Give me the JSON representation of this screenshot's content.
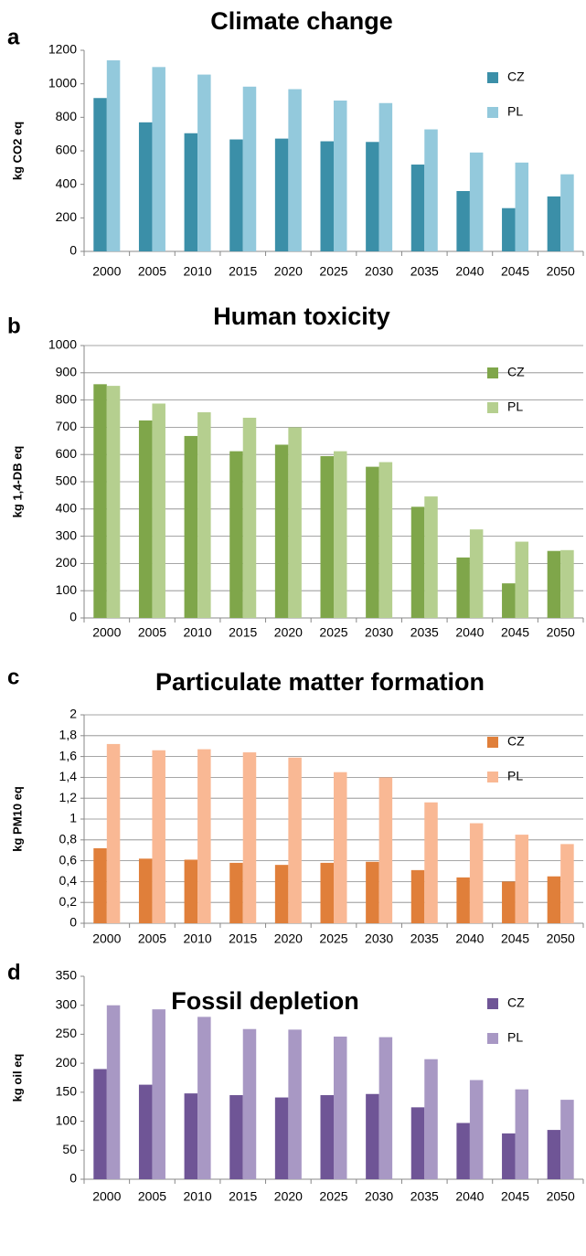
{
  "chart_data": [
    {
      "type": "bar",
      "panel": "a",
      "title": "Climate change",
      "y_label": "kg CO2 eq",
      "categories": [
        "2000",
        "2005",
        "2010",
        "2015",
        "2020",
        "2025",
        "2030",
        "2035",
        "2040",
        "2045",
        "2050"
      ],
      "series": [
        {
          "name": "CZ",
          "color": "#3b8fa8",
          "values": [
            915,
            770,
            705,
            668,
            673,
            657,
            653,
            518,
            360,
            258,
            328
          ]
        },
        {
          "name": "PL",
          "color": "#93c9dc",
          "values": [
            1140,
            1100,
            1055,
            983,
            968,
            900,
            885,
            728,
            590,
            530,
            460
          ]
        }
      ],
      "ylim": [
        0,
        1200
      ],
      "yticks": [
        0,
        200,
        400,
        600,
        800,
        1000,
        1200
      ],
      "grid": false,
      "legend": "upper right"
    },
    {
      "type": "bar",
      "panel": "b",
      "title": "Human toxicity",
      "y_label": "kg 1,4-DB eq",
      "categories": [
        "2000",
        "2005",
        "2010",
        "2015",
        "2020",
        "2025",
        "2030",
        "2035",
        "2040",
        "2045",
        "2050"
      ],
      "series": [
        {
          "name": "CZ",
          "color": "#7fa64a",
          "values": [
            858,
            725,
            668,
            612,
            636,
            594,
            555,
            408,
            222,
            127,
            246
          ]
        },
        {
          "name": "PL",
          "color": "#b5cf8f",
          "values": [
            852,
            787,
            755,
            735,
            700,
            612,
            572,
            446,
            325,
            280,
            249
          ]
        }
      ],
      "ylim": [
        0,
        1000
      ],
      "yticks": [
        0,
        100,
        200,
        300,
        400,
        500,
        600,
        700,
        800,
        900,
        1000
      ],
      "grid": true,
      "legend": "upper right"
    },
    {
      "type": "bar",
      "panel": "c",
      "title": "Particulate matter formation",
      "y_label": "kg PM10 eq",
      "categories": [
        "2000",
        "2005",
        "2010",
        "2015",
        "2020",
        "2025",
        "2030",
        "2035",
        "2040",
        "2045",
        "2050"
      ],
      "series": [
        {
          "name": "CZ",
          "color": "#e07f3a",
          "values": [
            0.72,
            0.62,
            0.61,
            0.58,
            0.56,
            0.58,
            0.59,
            0.51,
            0.44,
            0.4,
            0.45
          ]
        },
        {
          "name": "PL",
          "color": "#f9b894",
          "values": [
            1.72,
            1.66,
            1.67,
            1.64,
            1.59,
            1.45,
            1.4,
            1.16,
            0.96,
            0.85,
            0.76
          ]
        }
      ],
      "ylim": [
        0,
        2
      ],
      "yticks": [
        0,
        {
          "value": 0.2,
          "label": "0,2"
        },
        {
          "value": 0.4,
          "label": "0,4"
        },
        {
          "value": 0.6,
          "label": "0,6"
        },
        {
          "value": 0.8,
          "label": "0,8"
        },
        1,
        {
          "value": 1.2,
          "label": "1,2"
        },
        {
          "value": 1.4,
          "label": "1,4"
        },
        {
          "value": 1.6,
          "label": "1,6"
        },
        {
          "value": 1.8,
          "label": "1,8"
        },
        2
      ],
      "grid": true,
      "legend": "upper right"
    },
    {
      "type": "bar",
      "panel": "d",
      "title": "Fossil depletion",
      "y_label": "kg oil eq",
      "categories": [
        "2000",
        "2005",
        "2010",
        "2015",
        "2020",
        "2025",
        "2030",
        "2035",
        "2040",
        "2045",
        "2050"
      ],
      "series": [
        {
          "name": "CZ",
          "color": "#6f5596",
          "values": [
            190,
            163,
            148,
            145,
            141,
            145,
            147,
            124,
            97,
            79,
            85
          ]
        },
        {
          "name": "PL",
          "color": "#a898c4",
          "values": [
            300,
            293,
            280,
            259,
            258,
            246,
            245,
            207,
            171,
            155,
            137
          ]
        }
      ],
      "ylim": [
        0,
        350
      ],
      "yticks": [
        0,
        50,
        100,
        150,
        200,
        250,
        300,
        350
      ],
      "grid": false,
      "legend": "upper right"
    }
  ]
}
